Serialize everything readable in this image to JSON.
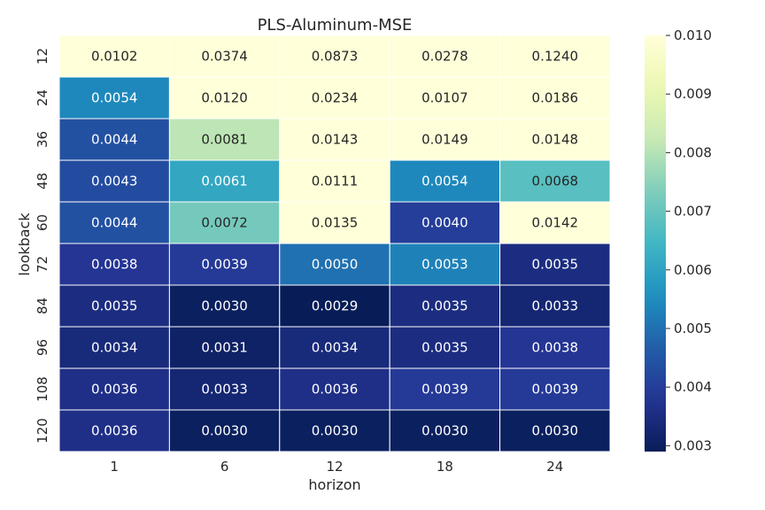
{
  "chart_data": {
    "type": "heatmap",
    "title": "PLS-Aluminum-MSE",
    "xlabel": "horizon",
    "ylabel": "lookback",
    "x_categories": [
      "1",
      "6",
      "12",
      "18",
      "24"
    ],
    "y_categories": [
      "12",
      "24",
      "36",
      "48",
      "60",
      "72",
      "84",
      "96",
      "108",
      "120"
    ],
    "values": [
      [
        0.0102,
        0.0374,
        0.0873,
        0.0278,
        0.124
      ],
      [
        0.0054,
        0.012,
        0.0234,
        0.0107,
        0.0186
      ],
      [
        0.0044,
        0.0081,
        0.0143,
        0.0149,
        0.0148
      ],
      [
        0.0043,
        0.0061,
        0.0111,
        0.0054,
        0.0068
      ],
      [
        0.0044,
        0.0072,
        0.0135,
        0.004,
        0.0142
      ],
      [
        0.0038,
        0.0039,
        0.005,
        0.0053,
        0.0035
      ],
      [
        0.0035,
        0.003,
        0.0029,
        0.0035,
        0.0033
      ],
      [
        0.0034,
        0.0031,
        0.0034,
        0.0035,
        0.0038
      ],
      [
        0.0036,
        0.0033,
        0.0036,
        0.0039,
        0.0039
      ],
      [
        0.0036,
        0.003,
        0.003,
        0.003,
        0.003
      ]
    ],
    "value_format": "0.0000",
    "colormap": "YlGnBu_r",
    "vmin": 0.0029,
    "vmax": 0.01,
    "colorbar_ticks": [
      "0.003",
      "0.004",
      "0.005",
      "0.006",
      "0.007",
      "0.008",
      "0.009",
      "0.010"
    ],
    "colorbar_tick_values": [
      0.003,
      0.004,
      0.005,
      0.006,
      0.007,
      0.008,
      0.009,
      0.01
    ],
    "grid": false,
    "legend": "colorbar-right"
  }
}
